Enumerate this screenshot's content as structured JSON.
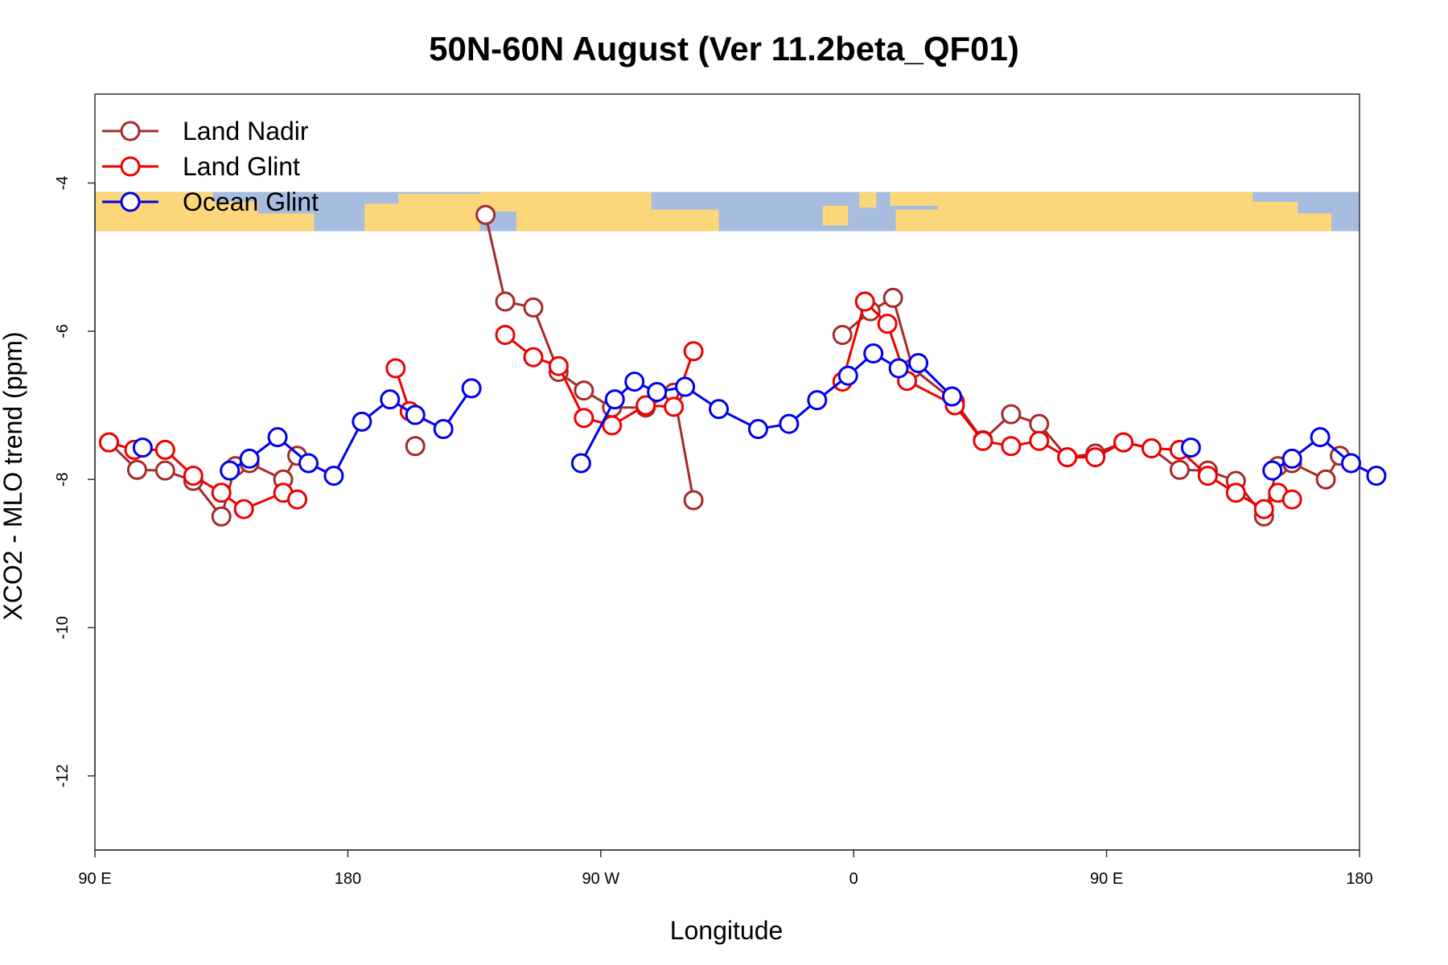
{
  "chart_data": {
    "type": "line",
    "title": "50N-60N August (Ver 11.2beta_QF01)",
    "xlabel": "Longitude",
    "ylabel": "XCO2 - MLO trend (ppm)",
    "xlim": [
      0,
      450
    ],
    "ylim": [
      -13,
      -2.8
    ],
    "x_ticks": [
      {
        "value": 0,
        "label": "90 E"
      },
      {
        "value": 90,
        "label": "180"
      },
      {
        "value": 180,
        "label": "90 W"
      },
      {
        "value": 270,
        "label": "0"
      },
      {
        "value": 360,
        "label": "90 E"
      },
      {
        "value": 450,
        "label": "180"
      }
    ],
    "y_ticks": [
      {
        "value": -4,
        "label": "-4"
      },
      {
        "value": -6,
        "label": "-6"
      },
      {
        "value": -8,
        "label": "-8"
      },
      {
        "value": -10,
        "label": "-10"
      },
      {
        "value": -12,
        "label": "-12"
      }
    ],
    "map_band": {
      "ymin": -4.65,
      "ymax": -4.12,
      "land_color": "#fcd77a",
      "ocean_color": "#a7bddf"
    },
    "legend_position": "top-left",
    "series": [
      {
        "name": "Land Nadir",
        "color": "#a52a2a",
        "segments": [
          [
            [
              5,
              -7.5
            ],
            [
              15,
              -7.87
            ],
            [
              25,
              -7.88
            ],
            [
              35,
              -8.02
            ],
            [
              45,
              -8.5
            ],
            [
              50,
              -7.82
            ],
            [
              55,
              -7.78
            ],
            [
              67,
              -8.0
            ],
            [
              72,
              -7.68
            ]
          ],
          [
            [
              114,
              -7.55
            ]
          ],
          [
            [
              139,
              -4.43
            ],
            [
              146,
              -5.6
            ],
            [
              156,
              -5.68
            ],
            [
              165,
              -6.55
            ],
            [
              174,
              -6.8
            ],
            [
              184,
              -7.03
            ],
            [
              196,
              -7.03
            ],
            [
              206,
              -6.83
            ],
            [
              213,
              -8.28
            ]
          ],
          [
            [
              266,
              -6.05
            ],
            [
              276,
              -5.73
            ],
            [
              284,
              -5.55
            ],
            [
              291,
              -6.5
            ],
            [
              306,
              -6.95
            ],
            [
              316,
              -7.47
            ],
            [
              326,
              -7.12
            ],
            [
              336,
              -7.25
            ],
            [
              346,
              -7.7
            ],
            [
              356,
              -7.65
            ],
            [
              366,
              -7.5
            ],
            [
              376,
              -7.58
            ],
            [
              386,
              -7.87
            ],
            [
              396,
              -7.88
            ],
            [
              406,
              -8.02
            ],
            [
              416,
              -8.5
            ],
            [
              421,
              -7.82
            ],
            [
              426,
              -7.78
            ],
            [
              438,
              -8.0
            ],
            [
              443,
              -7.68
            ]
          ]
        ]
      },
      {
        "name": "Land Glint",
        "color": "#ee0000",
        "segments": [
          [
            [
              5,
              -7.5
            ],
            [
              14,
              -7.6
            ],
            [
              25,
              -7.6
            ],
            [
              35,
              -7.95
            ],
            [
              45,
              -8.18
            ],
            [
              53,
              -8.4
            ],
            [
              67,
              -8.18
            ],
            [
              72,
              -8.27
            ]
          ],
          [
            [
              107,
              -6.5
            ],
            [
              112,
              -7.08
            ]
          ],
          [
            [
              146,
              -6.05
            ],
            [
              156,
              -6.35
            ],
            [
              165,
              -6.47
            ],
            [
              174,
              -7.17
            ],
            [
              184,
              -7.27
            ],
            [
              196,
              -7.0
            ],
            [
              206,
              -7.02
            ],
            [
              213,
              -6.27
            ]
          ],
          [
            [
              266,
              -6.68
            ],
            [
              274,
              -5.6
            ],
            [
              282,
              -5.9
            ],
            [
              289,
              -6.67
            ],
            [
              306,
              -7.0
            ],
            [
              316,
              -7.48
            ],
            [
              326,
              -7.55
            ],
            [
              336,
              -7.48
            ],
            [
              346,
              -7.7
            ],
            [
              356,
              -7.7
            ],
            [
              366,
              -7.5
            ],
            [
              376,
              -7.58
            ],
            [
              386,
              -7.6
            ],
            [
              396,
              -7.95
            ],
            [
              406,
              -8.18
            ],
            [
              416,
              -8.4
            ],
            [
              421,
              -8.18
            ],
            [
              426,
              -8.27
            ]
          ]
        ]
      },
      {
        "name": "Ocean Glint",
        "color": "#0000ee",
        "segments": [
          [
            [
              17,
              -7.57
            ]
          ],
          [
            [
              48,
              -7.88
            ],
            [
              55,
              -7.72
            ],
            [
              65,
              -7.43
            ],
            [
              76,
              -7.78
            ],
            [
              85,
              -7.95
            ],
            [
              95,
              -7.22
            ],
            [
              105,
              -6.92
            ],
            [
              114,
              -7.13
            ],
            [
              124,
              -7.32
            ],
            [
              134,
              -6.77
            ]
          ],
          [
            [
              173,
              -7.78
            ],
            [
              185,
              -6.92
            ],
            [
              192,
              -6.68
            ],
            [
              200,
              -6.82
            ],
            [
              210,
              -6.75
            ],
            [
              222,
              -7.05
            ],
            [
              236,
              -7.32
            ],
            [
              247,
              -7.25
            ],
            [
              257,
              -6.93
            ],
            [
              268,
              -6.6
            ],
            [
              277,
              -6.3
            ],
            [
              286,
              -6.5
            ],
            [
              293,
              -6.43
            ],
            [
              305,
              -6.88
            ]
          ],
          [
            [
              390,
              -7.57
            ]
          ],
          [
            [
              419,
              -7.88
            ],
            [
              426,
              -7.72
            ],
            [
              436,
              -7.43
            ],
            [
              447,
              -7.78
            ],
            [
              456,
              -7.95
            ]
          ]
        ]
      }
    ]
  }
}
